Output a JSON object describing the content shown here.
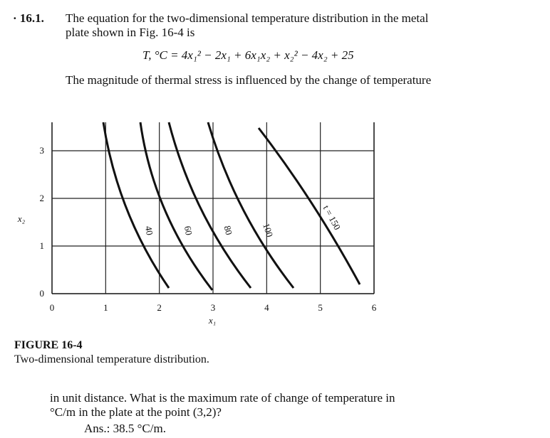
{
  "problem": {
    "number": "16.1.",
    "lines": [
      "The equation for the two-dimensional temperature distribution in the metal",
      "plate shown in Fig. 16-4 is"
    ],
    "equation": "T, °C = 4x₁² − 2x₁ + 6x₁x₂ + x₂² − 4x₂ + 25",
    "paragraph": "The magnitude of thermal stress is influenced by the change of temperature"
  },
  "figure": {
    "x_ticks": [
      0,
      1,
      2,
      3,
      4,
      5,
      6
    ],
    "y_ticks": [
      0,
      1,
      2,
      3
    ],
    "x_label": "x₁",
    "y_label": "x₂",
    "contour_labels": [
      "40",
      "60",
      "80",
      "100",
      "t = 150"
    ],
    "caption_title": "FIGURE 16-4",
    "caption": "Two-dimensional temperature distribution."
  },
  "continuation": {
    "lines": [
      "in unit distance. What is the maximum rate of change of temperature in",
      "°C/m in the plate at the point (3,2)?"
    ],
    "answer_label": "Ans.:",
    "answer": "38.5 °C/m."
  }
}
